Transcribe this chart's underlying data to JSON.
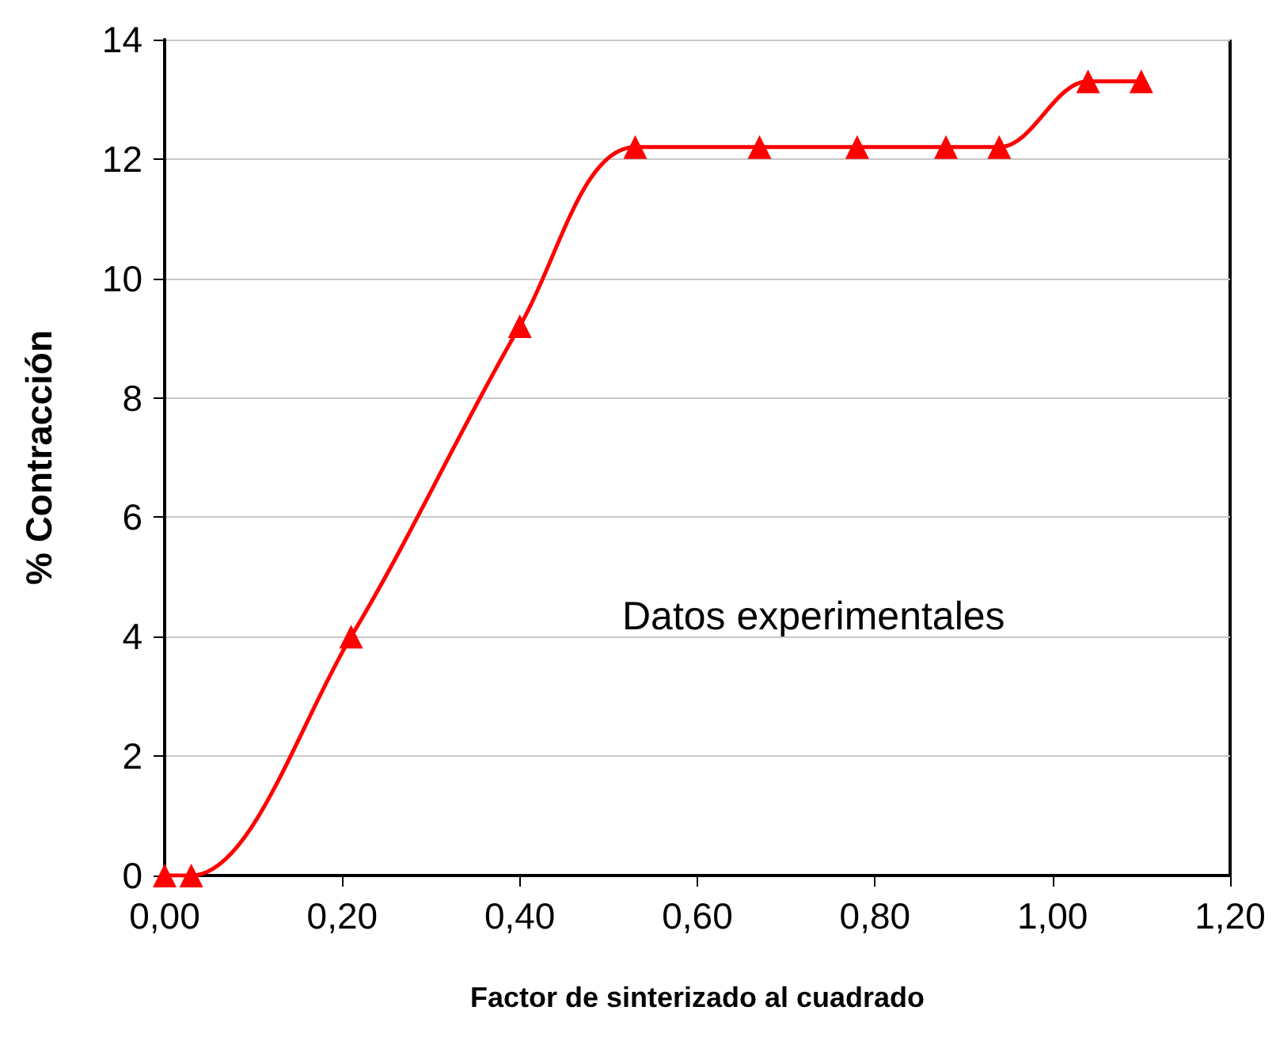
{
  "chart_data": {
    "type": "line",
    "xlabel": "Factor de sinterizado al cuadrado",
    "ylabel": "% Contracción",
    "annotations": [
      "Datos experimentales"
    ],
    "series": [
      {
        "color": "#ff0000",
        "x": [
          0,
          0.03,
          0.21,
          0.4,
          0.53,
          0.67,
          0.78,
          0.88,
          0.94,
          1.04,
          1.1
        ],
        "values": [
          0,
          0,
          4.0,
          9.2,
          12.2,
          12.2,
          12.2,
          12.2,
          12.2,
          13.3,
          13.3
        ]
      }
    ],
    "xlim": [
      0,
      1.2
    ],
    "xticks": [
      {
        "value": 0,
        "label": "0,00"
      },
      {
        "value": 0.2,
        "label": "0,20"
      },
      {
        "value": 0.4,
        "label": "0,40"
      },
      {
        "value": 0.6,
        "label": "0,60"
      },
      {
        "value": 0.8,
        "label": "0,80"
      },
      {
        "value": 1.0,
        "label": "1,00"
      },
      {
        "value": 1.2,
        "label": "1,20"
      }
    ],
    "ylim": [
      0,
      14
    ],
    "yticks": [
      0,
      2,
      4,
      6,
      8,
      10,
      12,
      14
    ],
    "grid": "y",
    "marker": "triangle",
    "line_style": "solid"
  }
}
